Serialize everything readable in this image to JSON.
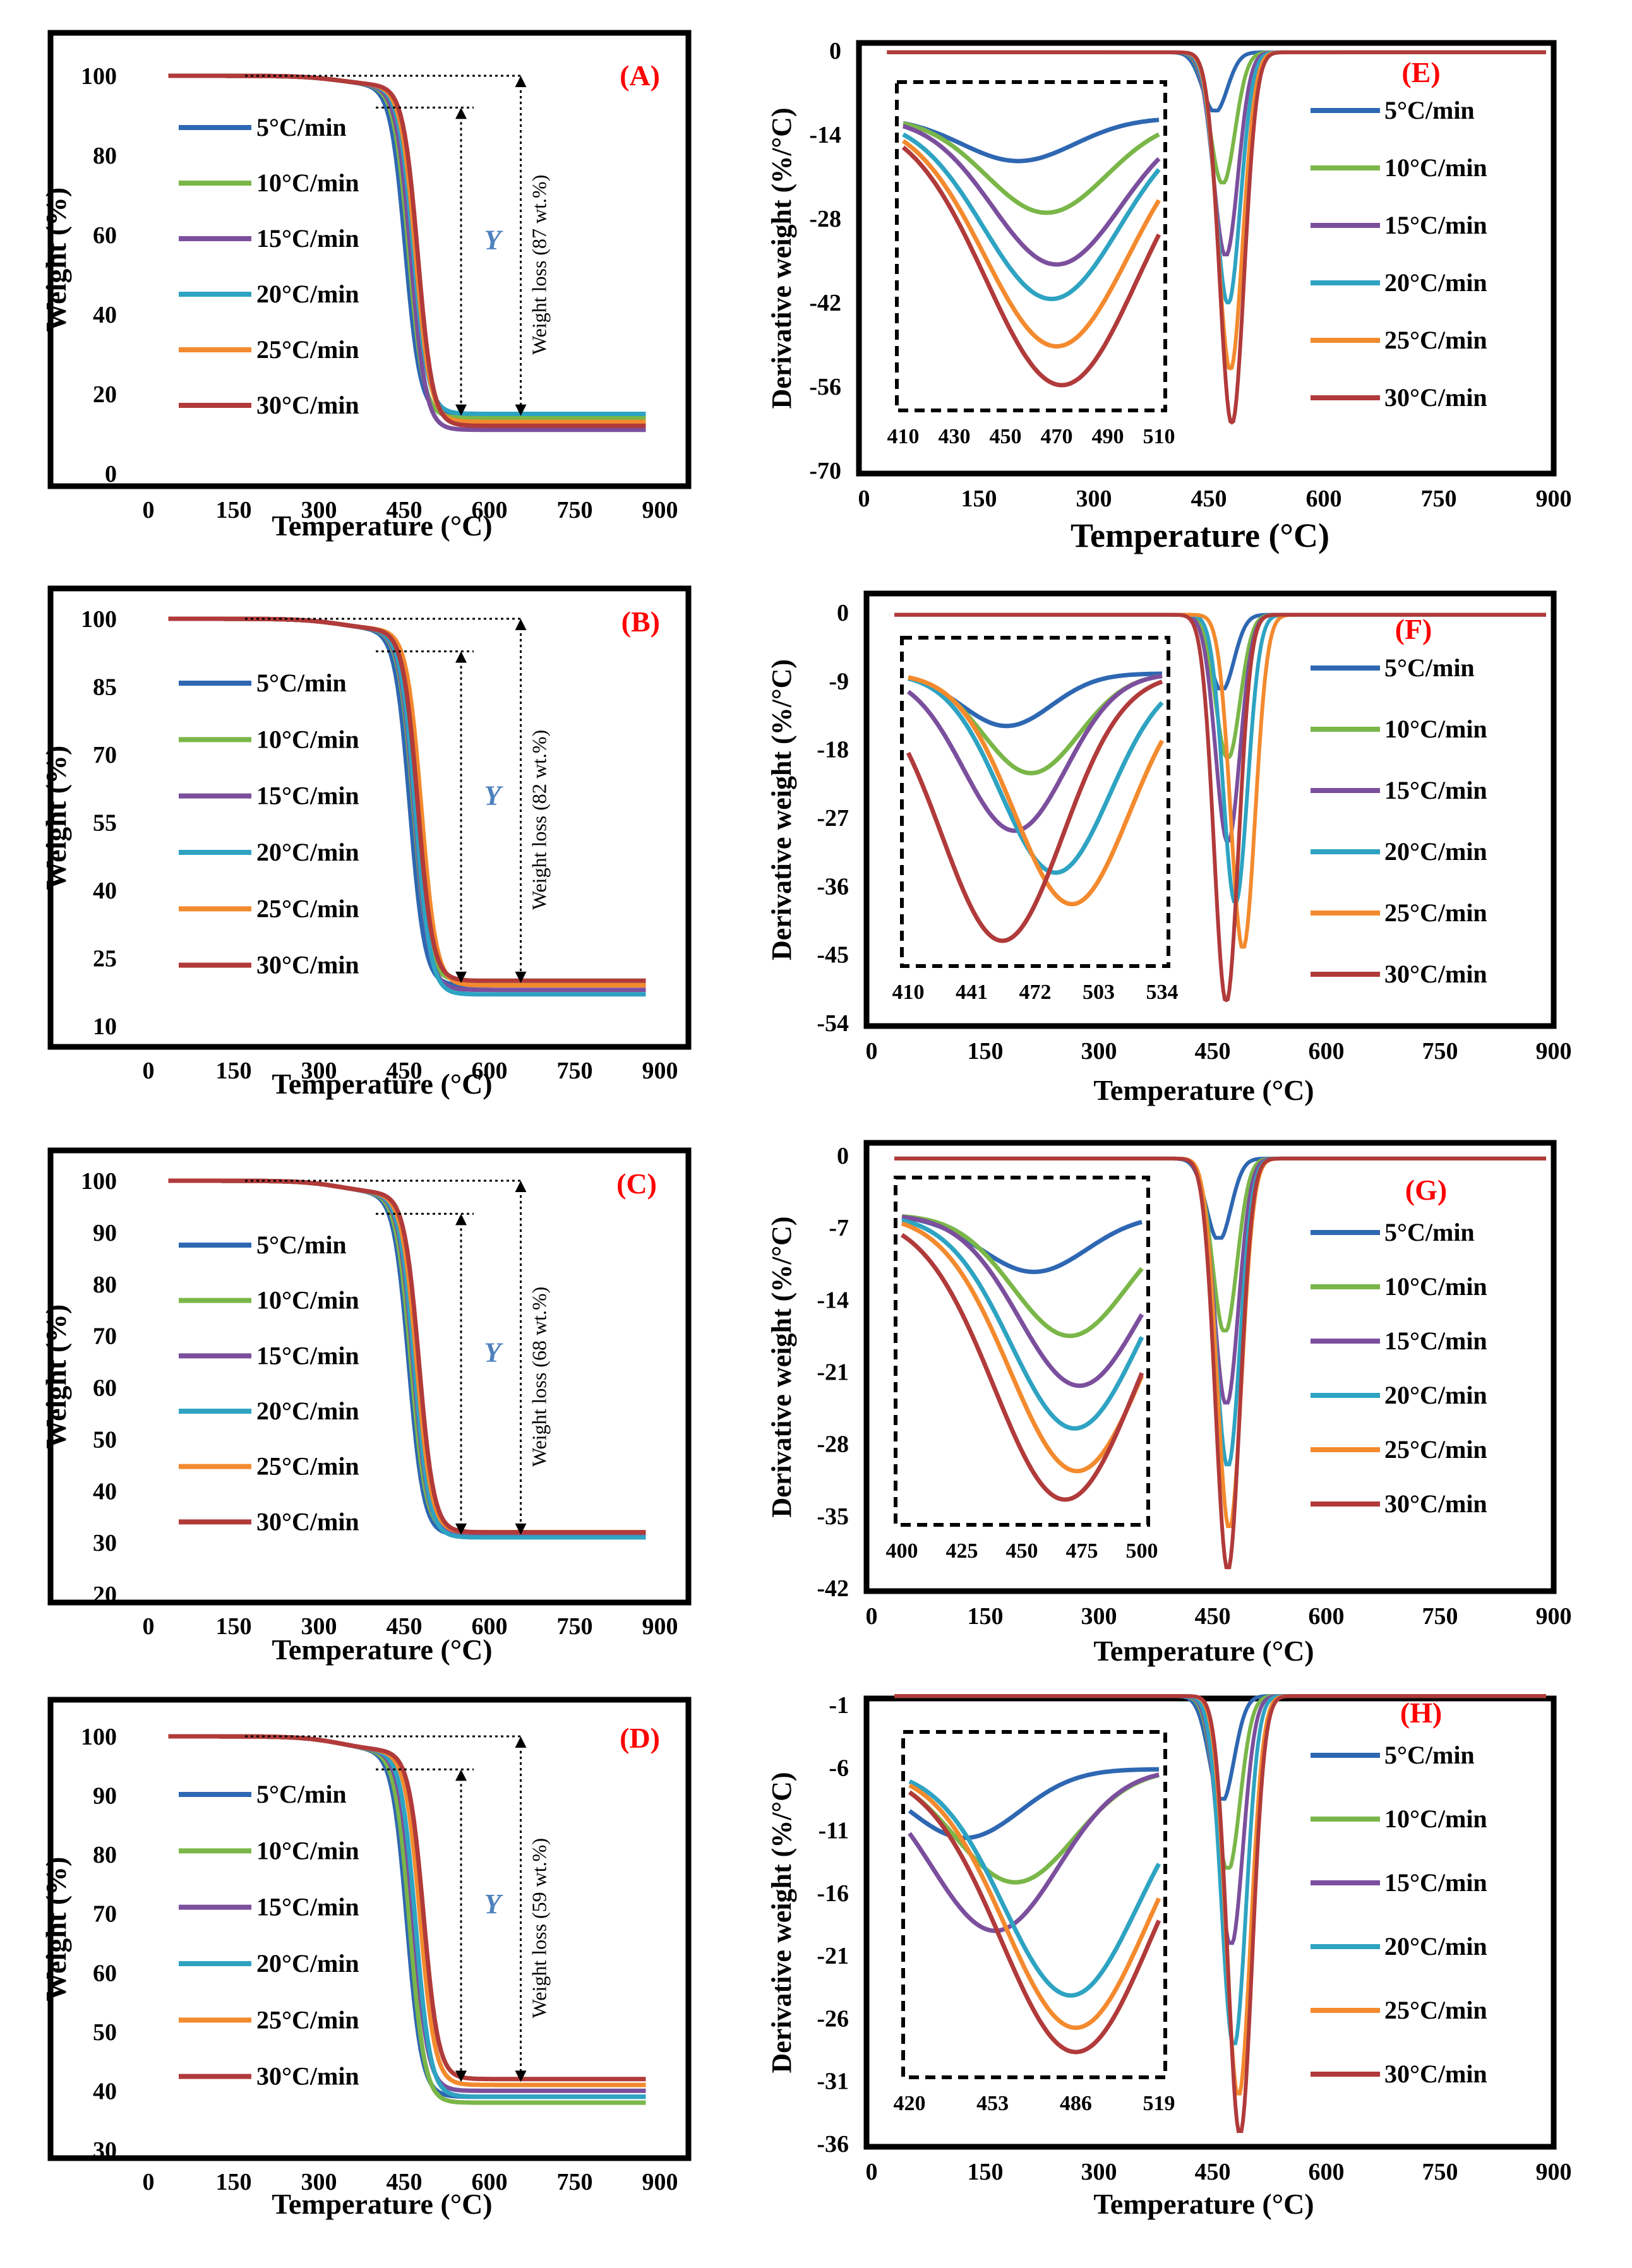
{
  "series_colors": [
    "#2e67b2",
    "#7ab648",
    "#7b4f9d",
    "#2ea3c2",
    "#f38a2e",
    "#b13a3a"
  ],
  "chart_data": [
    {
      "id": "A",
      "type": "line",
      "panel_label": "(A)",
      "xlabel": "Temperature (°C)",
      "ylabel": "Weight (%)",
      "xlim": [
        0,
        900
      ],
      "ylim": [
        0,
        100
      ],
      "xticks": [
        "0",
        "150",
        "300",
        "450",
        "600",
        "750",
        "900"
      ],
      "yticks": [
        "0",
        "20",
        "40",
        "60",
        "80",
        "100"
      ],
      "legend": [
        "5°C/min",
        "10°C/min",
        "15°C/min",
        "20°C/min",
        "25°C/min",
        "30°C/min"
      ],
      "residues": [
        15,
        14,
        11,
        15,
        13,
        12
      ],
      "onsets": [
        452,
        458,
        462,
        466,
        470,
        474
      ],
      "y_marker": "Y",
      "weight_loss_label": "Weight loss (87 wt.%)"
    },
    {
      "id": "B",
      "type": "line",
      "panel_label": "(B)",
      "xlabel": "Temperature (°C)",
      "ylabel": "Weight (%)",
      "xlim": [
        0,
        900
      ],
      "ylim": [
        10,
        100
      ],
      "xticks": [
        "0",
        "150",
        "300",
        "450",
        "600",
        "750",
        "900"
      ],
      "yticks": [
        "10",
        "25",
        "40",
        "55",
        "70",
        "85",
        "100"
      ],
      "legend": [
        "5°C/min",
        "10°C/min",
        "15°C/min",
        "20°C/min",
        "25°C/min",
        "30°C/min"
      ],
      "residues": [
        19,
        20,
        18,
        17,
        19,
        20
      ],
      "onsets": [
        460,
        466,
        468,
        470,
        480,
        474
      ],
      "y_marker": "Y",
      "weight_loss_label": "Weight loss (82 wt.%)"
    },
    {
      "id": "C",
      "type": "line",
      "panel_label": "(C)",
      "xlabel": "Temperature (°C)",
      "ylabel": "Weight (%)",
      "xlim": [
        0,
        900
      ],
      "ylim": [
        20,
        100
      ],
      "xticks": [
        "0",
        "150",
        "300",
        "450",
        "600",
        "750",
        "900"
      ],
      "yticks": [
        "20",
        "30",
        "40",
        "50",
        "60",
        "70",
        "80",
        "90",
        "100"
      ],
      "legend": [
        "5°C/min",
        "10°C/min",
        "15°C/min",
        "20°C/min",
        "25°C/min",
        "30°C/min"
      ],
      "residues": [
        31.5,
        32,
        31.5,
        31,
        32,
        32
      ],
      "onsets": [
        458,
        462,
        466,
        468,
        472,
        476
      ],
      "y_marker": "Y",
      "weight_loss_label": "Weight loss (68 wt.%)"
    },
    {
      "id": "D",
      "type": "line",
      "panel_label": "(D)",
      "xlabel": "Temperature (°C)",
      "ylabel": "Weight (%)",
      "xlim": [
        0,
        900
      ],
      "ylim": [
        30,
        100
      ],
      "xticks": [
        "0",
        "150",
        "300",
        "450",
        "600",
        "750",
        "900"
      ],
      "yticks": [
        "30",
        "40",
        "50",
        "60",
        "70",
        "80",
        "90",
        "100"
      ],
      "legend": [
        "5°C/min",
        "10°C/min",
        "15°C/min",
        "20°C/min",
        "25°C/min",
        "30°C/min"
      ],
      "residues": [
        39,
        38,
        40,
        39,
        41,
        42
      ],
      "onsets": [
        455,
        460,
        466,
        470,
        478,
        484
      ],
      "y_marker": "Y",
      "weight_loss_label": "Weight loss (59 wt.%)"
    },
    {
      "id": "E",
      "type": "line",
      "panel_label": "(E)",
      "xlabel": "Temperature (°C)",
      "ylabel": "Derivative weight (%/°C)",
      "xlim": [
        0,
        900
      ],
      "ylim": [
        -70,
        0
      ],
      "xticks": [
        "0",
        "150",
        "300",
        "450",
        "600",
        "750",
        "900"
      ],
      "yticks": [
        "0",
        "-14",
        "-28",
        "-42",
        "-56",
        "-70"
      ],
      "legend": [
        "5°C/min",
        "10°C/min",
        "15°C/min",
        "20°C/min",
        "25°C/min",
        "30°C/min"
      ],
      "peaks_x": [
        458,
        468,
        472,
        475,
        478,
        480
      ],
      "peaks_y": [
        -10,
        -22,
        -34,
        -42,
        -53,
        -62
      ],
      "inset": {
        "xticks": [
          "410",
          "430",
          "450",
          "470",
          "490",
          "510"
        ],
        "peaks_x": [
          455,
          466,
          470,
          468,
          470,
          472
        ]
      }
    },
    {
      "id": "F",
      "type": "line",
      "panel_label": "(F)",
      "xlabel": "Temperature (°C)",
      "ylabel": "Derivative weight (%/°C)",
      "xlim": [
        0,
        900
      ],
      "ylim": [
        -54,
        0
      ],
      "xticks": [
        "0",
        "150",
        "300",
        "450",
        "600",
        "750",
        "900"
      ],
      "yticks": [
        "0",
        "-9",
        "-18",
        "-27",
        "-36",
        "-45",
        "-54"
      ],
      "legend": [
        "5°C/min",
        "10°C/min",
        "15°C/min",
        "20°C/min",
        "25°C/min",
        "30°C/min"
      ],
      "peaks_x": [
        462,
        470,
        470,
        480,
        490,
        468
      ],
      "peaks_y": [
        -10,
        -19,
        -30,
        -38,
        -44,
        -51
      ],
      "inset": {
        "xticks": [
          "410",
          "441",
          "472",
          "503",
          "534"
        ],
        "peaks_x": [
          458,
          470,
          462,
          482,
          490,
          456
        ]
      }
    },
    {
      "id": "G",
      "type": "line",
      "panel_label": "(G)",
      "xlabel": "Temperature (°C)",
      "ylabel": "Derivative weight (%/°C)",
      "xlim": [
        0,
        900
      ],
      "ylim": [
        -42,
        0
      ],
      "xticks": [
        "0",
        "150",
        "300",
        "450",
        "600",
        "750",
        "900"
      ],
      "yticks": [
        "0",
        "-7",
        "-14",
        "-21",
        "-28",
        "-35",
        "-42"
      ],
      "legend": [
        "5°C/min",
        "10°C/min",
        "15°C/min",
        "20°C/min",
        "25°C/min",
        "30°C/min"
      ],
      "peaks_x": [
        458,
        466,
        468,
        470,
        472,
        470
      ],
      "peaks_y": [
        -8,
        -17,
        -24,
        -30,
        -36,
        -40
      ],
      "inset": {
        "xticks": [
          "400",
          "425",
          "450",
          "475",
          "500"
        ],
        "peaks_x": [
          455,
          470,
          474,
          472,
          473,
          468
        ]
      }
    },
    {
      "id": "H",
      "type": "line",
      "panel_label": "(H)",
      "xlabel": "Temperature (°C)",
      "ylabel": "Derivative weight (%/°C)",
      "xlim": [
        0,
        900
      ],
      "ylim": [
        -36,
        -1
      ],
      "xticks": [
        "0",
        "150",
        "300",
        "450",
        "600",
        "750",
        "900"
      ],
      "yticks": [
        "-1",
        "-6",
        "-11",
        "-16",
        "-21",
        "-26",
        "-31",
        "-36"
      ],
      "legend": [
        "5°C/min",
        "10°C/min",
        "15°C/min",
        "20°C/min",
        "25°C/min",
        "30°C/min"
      ],
      "peaks_x": [
        462,
        470,
        474,
        478,
        484,
        486
      ],
      "peaks_y": [
        -8.5,
        -14,
        -20,
        -28,
        -32,
        -35
      ],
      "inset": {
        "xticks": [
          "420",
          "453",
          "486",
          "519"
        ],
        "peaks_x": [
          442,
          462,
          454,
          484,
          486,
          486
        ]
      }
    }
  ]
}
